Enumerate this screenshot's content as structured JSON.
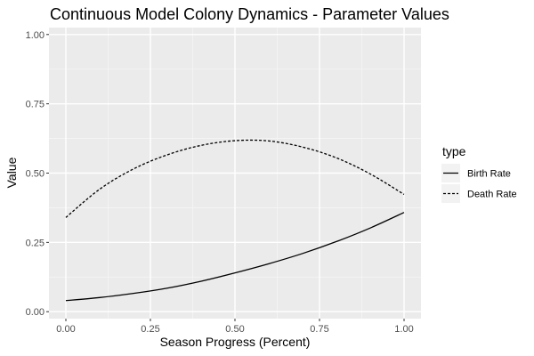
{
  "chart_data": {
    "type": "line",
    "title": "Continuous Model Colony Dynamics - Parameter Values",
    "xlabel": "Season Progress (Percent)",
    "ylabel": "Value",
    "xlim": [
      -0.05,
      1.05
    ],
    "ylim": [
      -0.025,
      1.025
    ],
    "x_ticks": [
      0.0,
      0.25,
      0.5,
      0.75,
      1.0
    ],
    "x_tick_labels": [
      "0.00",
      "0.25",
      "0.50",
      "0.75",
      "1.00"
    ],
    "y_ticks": [
      0.0,
      0.25,
      0.5,
      0.75,
      1.0
    ],
    "y_tick_labels": [
      "0.00",
      "0.25",
      "0.50",
      "0.75",
      "1.00"
    ],
    "grid": true,
    "legend": {
      "title": "type",
      "placement": "right"
    },
    "x": [
      0.0,
      0.1,
      0.2,
      0.3,
      0.4,
      0.5,
      0.6,
      0.7,
      0.8,
      0.9,
      1.0
    ],
    "series": [
      {
        "name": "Birth Rate",
        "linestyle": "solid",
        "color": "#000000",
        "values": [
          0.04,
          0.051,
          0.066,
          0.085,
          0.11,
          0.14,
          0.173,
          0.21,
          0.253,
          0.302,
          0.358
        ]
      },
      {
        "name": "Death Rate",
        "linestyle": "dashed",
        "color": "#000000",
        "values": [
          0.34,
          0.442,
          0.515,
          0.566,
          0.6,
          0.617,
          0.616,
          0.594,
          0.555,
          0.497,
          0.423
        ]
      }
    ],
    "colors": {
      "panel_background": "#ebebeb",
      "grid_major": "#ffffff",
      "grid_minor": "#f5f5f5",
      "legend_key_background": "#f2f2f2"
    }
  }
}
